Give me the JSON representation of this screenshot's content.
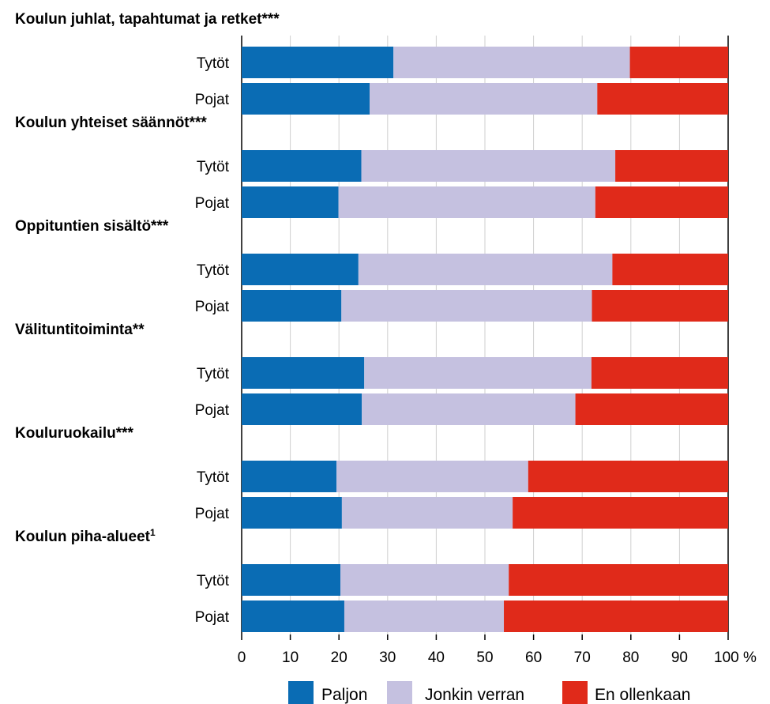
{
  "chart_data": {
    "type": "bar",
    "orientation": "horizontal",
    "stacked": "100%",
    "x_unit": "%",
    "xlim": [
      0,
      100
    ],
    "x_ticks": [
      "0",
      "10",
      "20",
      "30",
      "40",
      "50",
      "60",
      "70",
      "80",
      "90",
      "100 %"
    ],
    "grid": true,
    "legend_position": "bottom",
    "series": [
      {
        "name": "Paljon",
        "color": "#0a6cb4"
      },
      {
        "name": "Jonkin verran",
        "color": "#c5c1e0"
      },
      {
        "name": "En ollenkaan",
        "color": "#e02a1a"
      }
    ],
    "groups": [
      {
        "title": "Koulun juhlat, tapahtumat ja retket***",
        "rows": [
          {
            "label": "Tytöt",
            "values": [
              31.2,
              48.6,
              20.2
            ]
          },
          {
            "label": "Pojat",
            "values": [
              26.3,
              46.8,
              26.9
            ]
          }
        ]
      },
      {
        "title": "Koulun yhteiset säännöt***",
        "rows": [
          {
            "label": "Tytöt",
            "values": [
              24.6,
              52.2,
              23.2
            ]
          },
          {
            "label": "Pojat",
            "values": [
              19.9,
              52.8,
              27.3
            ]
          }
        ]
      },
      {
        "title": "Oppituntien sisältö***",
        "rows": [
          {
            "label": "Tytöt",
            "values": [
              24.0,
              52.2,
              23.8
            ]
          },
          {
            "label": "Pojat",
            "values": [
              20.5,
              51.5,
              28.0
            ]
          }
        ]
      },
      {
        "title": "Välituntitoiminta**",
        "rows": [
          {
            "label": "Tytöt",
            "values": [
              25.2,
              46.7,
              28.1
            ]
          },
          {
            "label": "Pojat",
            "values": [
              24.7,
              43.9,
              31.4
            ]
          }
        ]
      },
      {
        "title": "Kouluruokailu***",
        "rows": [
          {
            "label": "Tytöt",
            "values": [
              19.5,
              39.4,
              41.1
            ]
          },
          {
            "label": "Pojat",
            "values": [
              20.6,
              35.1,
              44.3
            ]
          }
        ]
      },
      {
        "title": "Koulun piha-alueet",
        "title_sup": "1",
        "rows": [
          {
            "label": "Tytöt",
            "values": [
              20.3,
              34.6,
              45.1
            ]
          },
          {
            "label": "Pojat",
            "values": [
              21.1,
              32.8,
              46.1
            ]
          }
        ]
      }
    ]
  }
}
